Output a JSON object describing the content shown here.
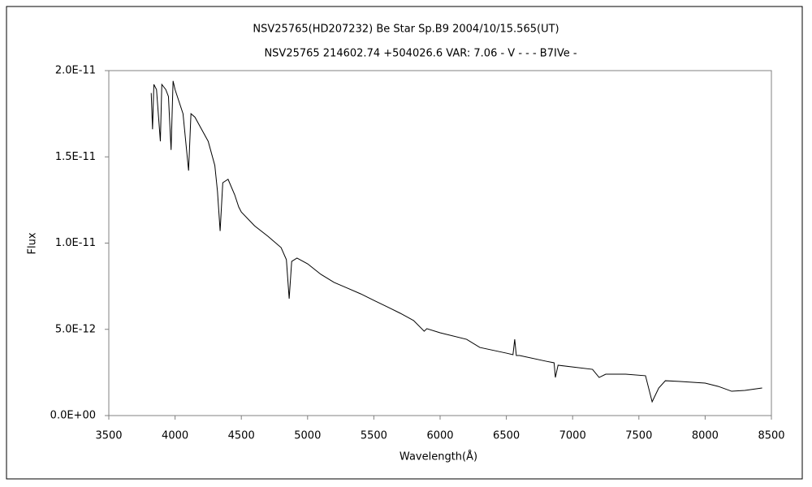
{
  "chart_data": {
    "type": "line",
    "title": "NSV25765(HD207232)   Be Star   Sp.B9   2004/10/15.565(UT)",
    "subtitle": "NSV25765 214602.74 +504026.6 VAR: 7.06 - V - - - B7IVe -",
    "x_label": "Wavelength(Å)",
    "y_label": "Flux",
    "xlim": [
      3500,
      8500
    ],
    "xticks": [
      3500,
      4000,
      4500,
      5000,
      5500,
      6000,
      6500,
      7000,
      7500,
      8000,
      8500
    ],
    "ylim": [
      0,
      2e-11
    ],
    "yticks": [
      {
        "value": 0,
        "label": "0.0E+00"
      },
      {
        "value": 5e-12,
        "label": "5.0E-12"
      },
      {
        "value": 1e-11,
        "label": "1.0E-11"
      },
      {
        "value": 1.5e-11,
        "label": "1.5E-11"
      },
      {
        "value": 2e-11,
        "label": "2.0E-11"
      }
    ],
    "grid": false,
    "color": "#000000",
    "x": [
      3820,
      3830,
      3840,
      3860,
      3889,
      3900,
      3930,
      3950,
      3970,
      3985,
      4000,
      4030,
      4060,
      4102,
      4120,
      4150,
      4200,
      4250,
      4300,
      4320,
      4340,
      4360,
      4400,
      4450,
      4480,
      4500,
      4600,
      4700,
      4800,
      4840,
      4861,
      4880,
      4920,
      5000,
      5100,
      5200,
      5300,
      5400,
      5500,
      5600,
      5700,
      5800,
      5880,
      5900,
      6000,
      6200,
      6300,
      6500,
      6550,
      6563,
      6575,
      6600,
      6800,
      6860,
      6870,
      6890,
      7000,
      7150,
      7200,
      7250,
      7400,
      7550,
      7600,
      7650,
      7700,
      7800,
      8000,
      8100,
      8200,
      8300,
      8430
    ],
    "values": [
      1.87e-11,
      1.66e-11,
      1.92e-11,
      1.89e-11,
      1.59e-11,
      1.92e-11,
      1.89e-11,
      1.85e-11,
      1.54e-11,
      1.94e-11,
      1.89e-11,
      1.82e-11,
      1.75e-11,
      1.42e-11,
      1.75e-11,
      1.73e-11,
      1.66e-11,
      1.59e-11,
      1.45e-11,
      1.3e-11,
      1.07e-11,
      1.35e-11,
      1.37e-11,
      1.28e-11,
      1.21e-11,
      1.18e-11,
      1.1e-11,
      1.04e-11,
      9.74e-12,
      9.04e-12,
      6.78e-12,
      8.94e-12,
      9.13e-12,
      8.8e-12,
      8.19e-12,
      7.72e-12,
      7.39e-12,
      7.06e-12,
      6.68e-12,
      6.31e-12,
      5.93e-12,
      5.51e-12,
      4.89e-12,
      5.04e-12,
      4.8e-12,
      4.42e-12,
      3.95e-12,
      3.62e-12,
      3.53e-12,
      4.42e-12,
      3.48e-12,
      3.48e-12,
      3.15e-12,
      3.06e-12,
      2.21e-12,
      2.92e-12,
      2.82e-12,
      2.68e-12,
      2.21e-12,
      2.4e-12,
      2.4e-12,
      2.31e-12,
      8e-13,
      1.6e-12,
      2.02e-12,
      1.98e-12,
      1.88e-12,
      1.69e-12,
      1.41e-12,
      1.46e-12,
      1.6e-12
    ]
  }
}
